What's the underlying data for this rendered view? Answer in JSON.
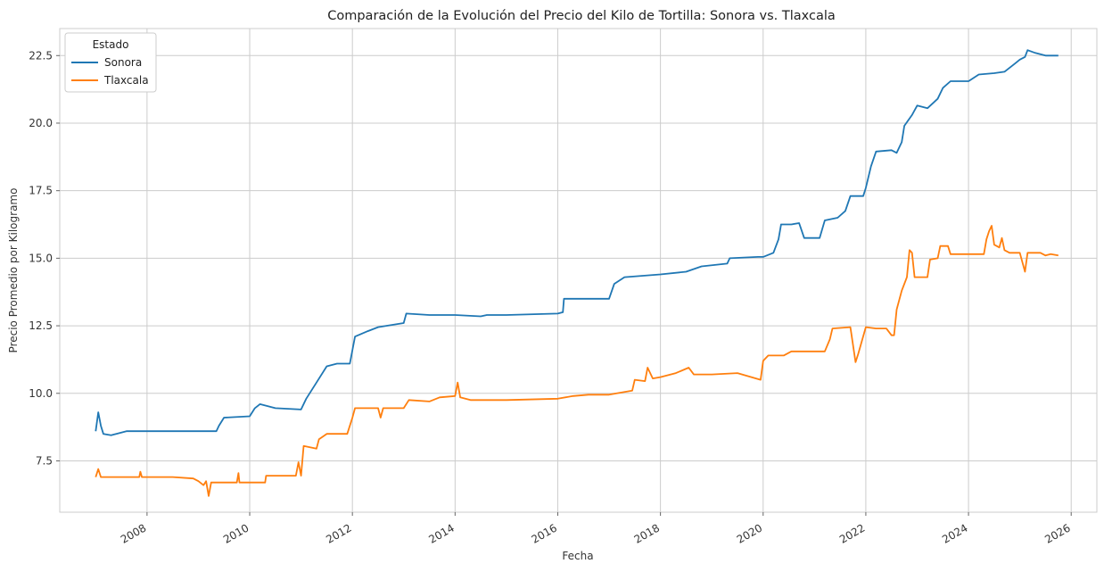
{
  "chart_data": {
    "type": "line",
    "title": "Comparación de la Evolución del Precio del Kilo de Tortilla: Sonora vs. Tlaxcala",
    "xlabel": "Fecha",
    "ylabel": "Precio Promedio por Kilogramo",
    "xlim": [
      2006.3,
      2026.5
    ],
    "ylim": [
      5.6,
      23.5
    ],
    "x_ticks": [
      2008,
      2010,
      2012,
      2014,
      2016,
      2018,
      2020,
      2022,
      2024,
      2026
    ],
    "x_tick_labels": [
      "2008",
      "2010",
      "2012",
      "2014",
      "2016",
      "2018",
      "2020",
      "2022",
      "2024",
      "2026"
    ],
    "y_ticks": [
      7.5,
      10.0,
      12.5,
      15.0,
      17.5,
      20.0,
      22.5
    ],
    "y_tick_labels": [
      "7.5",
      "10.0",
      "12.5",
      "15.0",
      "17.5",
      "20.0",
      "22.5"
    ],
    "grid": true,
    "legend": {
      "title": "Estado",
      "position": "top-left"
    },
    "series": [
      {
        "name": "Sonora",
        "color": "#1f77b4",
        "points": [
          [
            2007.0,
            8.6
          ],
          [
            2007.05,
            9.3
          ],
          [
            2007.1,
            8.8
          ],
          [
            2007.15,
            8.5
          ],
          [
            2007.3,
            8.45
          ],
          [
            2007.4,
            8.5
          ],
          [
            2007.6,
            8.6
          ],
          [
            2008.0,
            8.6
          ],
          [
            2009.0,
            8.6
          ],
          [
            2009.35,
            8.6
          ],
          [
            2009.4,
            8.8
          ],
          [
            2009.5,
            9.1
          ],
          [
            2010.0,
            9.15
          ],
          [
            2010.1,
            9.45
          ],
          [
            2010.2,
            9.6
          ],
          [
            2010.5,
            9.45
          ],
          [
            2011.0,
            9.4
          ],
          [
            2011.1,
            9.8
          ],
          [
            2011.3,
            10.4
          ],
          [
            2011.5,
            11.0
          ],
          [
            2011.7,
            11.1
          ],
          [
            2011.95,
            11.1
          ],
          [
            2012.05,
            12.1
          ],
          [
            2012.3,
            12.3
          ],
          [
            2012.5,
            12.45
          ],
          [
            2013.0,
            12.6
          ],
          [
            2013.05,
            12.95
          ],
          [
            2013.5,
            12.9
          ],
          [
            2014.0,
            12.9
          ],
          [
            2014.5,
            12.85
          ],
          [
            2014.62,
            12.9
          ],
          [
            2015.0,
            12.9
          ],
          [
            2016.0,
            12.95
          ],
          [
            2016.1,
            13.0
          ],
          [
            2016.12,
            13.5
          ],
          [
            2017.0,
            13.5
          ],
          [
            2017.1,
            14.05
          ],
          [
            2017.3,
            14.3
          ],
          [
            2018.0,
            14.4
          ],
          [
            2018.5,
            14.5
          ],
          [
            2018.8,
            14.7
          ],
          [
            2019.3,
            14.8
          ],
          [
            2019.35,
            15.0
          ],
          [
            2019.9,
            15.05
          ],
          [
            2020.0,
            15.05
          ],
          [
            2020.2,
            15.2
          ],
          [
            2020.3,
            15.7
          ],
          [
            2020.35,
            16.25
          ],
          [
            2020.55,
            16.25
          ],
          [
            2020.7,
            16.3
          ],
          [
            2020.8,
            15.75
          ],
          [
            2021.1,
            15.75
          ],
          [
            2021.2,
            16.4
          ],
          [
            2021.45,
            16.5
          ],
          [
            2021.6,
            16.75
          ],
          [
            2021.7,
            17.3
          ],
          [
            2021.95,
            17.3
          ],
          [
            2022.0,
            17.6
          ],
          [
            2022.1,
            18.4
          ],
          [
            2022.2,
            18.95
          ],
          [
            2022.5,
            19.0
          ],
          [
            2022.6,
            18.9
          ],
          [
            2022.7,
            19.3
          ],
          [
            2022.75,
            19.9
          ],
          [
            2022.9,
            20.3
          ],
          [
            2023.0,
            20.65
          ],
          [
            2023.2,
            20.55
          ],
          [
            2023.4,
            20.9
          ],
          [
            2023.5,
            21.3
          ],
          [
            2023.65,
            21.55
          ],
          [
            2024.0,
            21.55
          ],
          [
            2024.2,
            21.8
          ],
          [
            2024.5,
            21.85
          ],
          [
            2024.7,
            21.9
          ],
          [
            2024.9,
            22.2
          ],
          [
            2025.0,
            22.35
          ],
          [
            2025.1,
            22.45
          ],
          [
            2025.15,
            22.7
          ],
          [
            2025.3,
            22.6
          ],
          [
            2025.5,
            22.5
          ],
          [
            2025.75,
            22.5
          ]
        ]
      },
      {
        "name": "Tlaxcala",
        "color": "#ff7f0e",
        "points": [
          [
            2007.0,
            6.9
          ],
          [
            2007.05,
            7.2
          ],
          [
            2007.1,
            6.9
          ],
          [
            2007.5,
            6.9
          ],
          [
            2007.85,
            6.9
          ],
          [
            2007.87,
            7.1
          ],
          [
            2007.9,
            6.9
          ],
          [
            2008.5,
            6.9
          ],
          [
            2008.9,
            6.85
          ],
          [
            2009.0,
            6.75
          ],
          [
            2009.1,
            6.6
          ],
          [
            2009.15,
            6.75
          ],
          [
            2009.2,
            6.2
          ],
          [
            2009.25,
            6.7
          ],
          [
            2009.5,
            6.7
          ],
          [
            2009.75,
            6.7
          ],
          [
            2009.78,
            7.05
          ],
          [
            2009.8,
            6.7
          ],
          [
            2010.0,
            6.7
          ],
          [
            2010.3,
            6.7
          ],
          [
            2010.32,
            6.95
          ],
          [
            2010.9,
            6.95
          ],
          [
            2010.95,
            7.45
          ],
          [
            2011.0,
            6.95
          ],
          [
            2011.05,
            8.05
          ],
          [
            2011.3,
            7.95
          ],
          [
            2011.35,
            8.3
          ],
          [
            2011.5,
            8.5
          ],
          [
            2011.9,
            8.5
          ],
          [
            2012.0,
            9.1
          ],
          [
            2012.05,
            9.45
          ],
          [
            2012.5,
            9.45
          ],
          [
            2012.55,
            9.1
          ],
          [
            2012.6,
            9.45
          ],
          [
            2013.0,
            9.45
          ],
          [
            2013.1,
            9.75
          ],
          [
            2013.5,
            9.7
          ],
          [
            2013.7,
            9.85
          ],
          [
            2014.0,
            9.9
          ],
          [
            2014.05,
            10.4
          ],
          [
            2014.1,
            9.85
          ],
          [
            2014.3,
            9.75
          ],
          [
            2014.6,
            9.75
          ],
          [
            2015.0,
            9.75
          ],
          [
            2016.0,
            9.8
          ],
          [
            2016.3,
            9.9
          ],
          [
            2016.6,
            9.95
          ],
          [
            2017.0,
            9.95
          ],
          [
            2017.3,
            10.05
          ],
          [
            2017.45,
            10.1
          ],
          [
            2017.5,
            10.5
          ],
          [
            2017.7,
            10.45
          ],
          [
            2017.75,
            10.95
          ],
          [
            2017.85,
            10.55
          ],
          [
            2018.0,
            10.6
          ],
          [
            2018.3,
            10.75
          ],
          [
            2018.55,
            10.95
          ],
          [
            2018.65,
            10.7
          ],
          [
            2019.0,
            10.7
          ],
          [
            2019.5,
            10.75
          ],
          [
            2019.95,
            10.5
          ],
          [
            2020.0,
            11.2
          ],
          [
            2020.1,
            11.4
          ],
          [
            2020.4,
            11.4
          ],
          [
            2020.55,
            11.55
          ],
          [
            2021.2,
            11.55
          ],
          [
            2021.3,
            12.0
          ],
          [
            2021.35,
            12.4
          ],
          [
            2021.7,
            12.45
          ],
          [
            2021.8,
            11.15
          ],
          [
            2021.85,
            11.45
          ],
          [
            2022.0,
            12.45
          ],
          [
            2022.2,
            12.4
          ],
          [
            2022.4,
            12.4
          ],
          [
            2022.5,
            12.15
          ],
          [
            2022.55,
            12.15
          ],
          [
            2022.6,
            13.1
          ],
          [
            2022.7,
            13.8
          ],
          [
            2022.8,
            14.3
          ],
          [
            2022.85,
            15.3
          ],
          [
            2022.9,
            15.2
          ],
          [
            2022.95,
            14.3
          ],
          [
            2023.2,
            14.3
          ],
          [
            2023.25,
            14.95
          ],
          [
            2023.4,
            15.0
          ],
          [
            2023.45,
            15.45
          ],
          [
            2023.6,
            15.45
          ],
          [
            2023.65,
            15.15
          ],
          [
            2024.0,
            15.15
          ],
          [
            2024.3,
            15.15
          ],
          [
            2024.35,
            15.7
          ],
          [
            2024.4,
            16.0
          ],
          [
            2024.45,
            16.2
          ],
          [
            2024.5,
            15.5
          ],
          [
            2024.6,
            15.4
          ],
          [
            2024.65,
            15.75
          ],
          [
            2024.7,
            15.3
          ],
          [
            2024.8,
            15.2
          ],
          [
            2025.0,
            15.2
          ],
          [
            2025.1,
            14.5
          ],
          [
            2025.15,
            15.2
          ],
          [
            2025.4,
            15.2
          ],
          [
            2025.5,
            15.1
          ],
          [
            2025.6,
            15.15
          ],
          [
            2025.75,
            15.1
          ]
        ]
      }
    ]
  }
}
